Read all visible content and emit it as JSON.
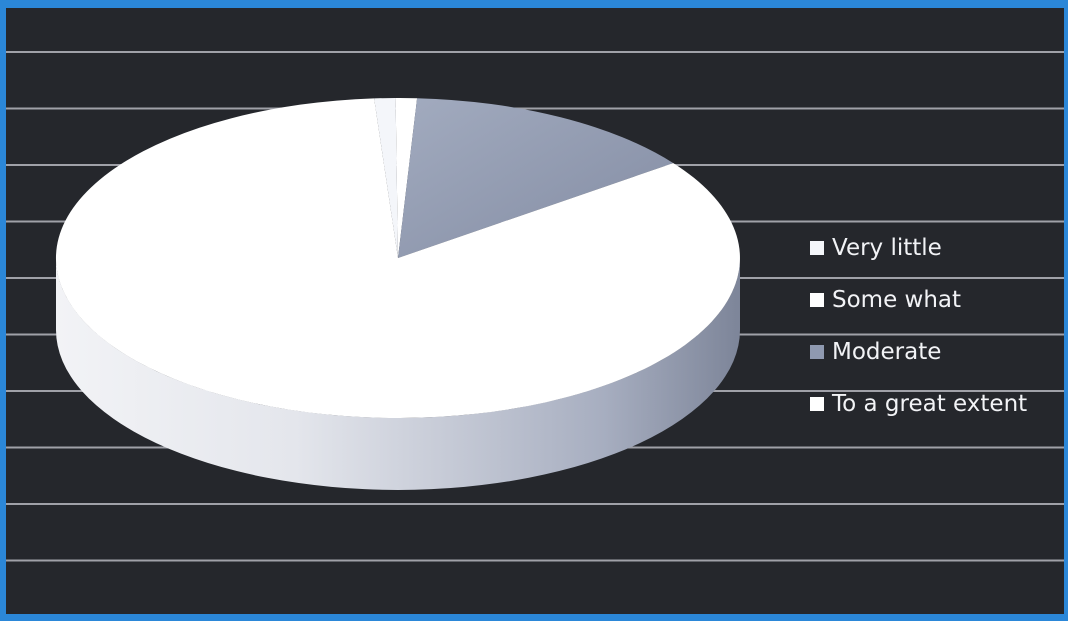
{
  "chart_data": {
    "type": "pie",
    "title": "",
    "categories": [
      "Very little",
      "Some what",
      "Moderate",
      "To a great extent"
    ],
    "values": [
      1,
      1,
      14,
      84
    ],
    "unit": "%",
    "legend_position": "right",
    "grid": true,
    "three_d": true,
    "colors": [
      "#f4f6fa",
      "#ffffff",
      "#8f99b0",
      "#ffffff"
    ],
    "panel_background": "#25272c",
    "frame_color": "#2b87d8",
    "gridline_color": "#c9cbd2"
  }
}
